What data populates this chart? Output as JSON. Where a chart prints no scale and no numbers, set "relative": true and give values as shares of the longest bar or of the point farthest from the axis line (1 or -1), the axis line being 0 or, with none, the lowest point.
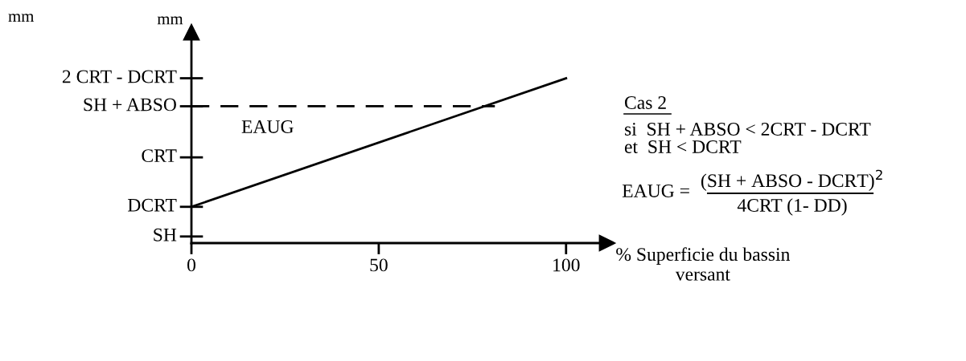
{
  "chart_data": {
    "type": "line",
    "relative": true,
    "ylabel": "mm",
    "xlabel": "% Superficie du bassin\nversant",
    "x": [
      0,
      100
    ],
    "series": [
      {
        "color": "#000000",
        "values": [
          0.22,
          1
        ],
        "line_style": "solid"
      },
      {
        "color": "#000000",
        "x": [
          0,
          81
        ],
        "values": [
          0.83,
          0.83
        ],
        "line_style": "dashed"
      }
    ],
    "xlim": [
      0,
      111
    ],
    "xticks": [
      0,
      50,
      100
    ],
    "ref_lines": [
      {
        "axis": "y",
        "value": 0.04,
        "label": "SH"
      },
      {
        "axis": "y",
        "value": 0.22,
        "label": "DCRT"
      },
      {
        "axis": "y",
        "value": 0.52,
        "label": "CRT"
      },
      {
        "axis": "y",
        "value": 0.83,
        "label": "SH + ABSO"
      },
      {
        "axis": "y",
        "value": 1,
        "label": "2 CRT - DCRT"
      }
    ],
    "grid": false,
    "legend": false,
    "marker": "none",
    "annotations": [
      "mm",
      "EAUG",
      "Cas 2",
      "si  SH + ABSO < 2CRT - DCRT",
      "et  SH < DCRT",
      "EAUG =",
      "(SH + ABSO - DCRT)$^{2}$",
      "4CRT (1- DD)"
    ]
  }
}
